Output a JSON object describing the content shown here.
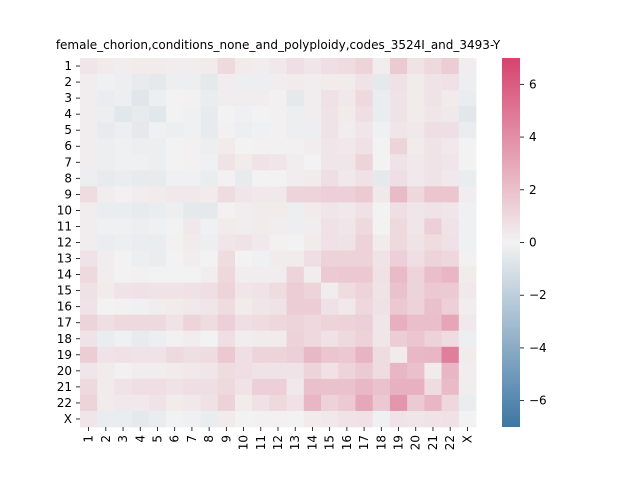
{
  "chart_data": {
    "type": "heatmap",
    "title": "female_chorion,conditions_none_and_polyploidy,codes_3524I_and_3493-Y",
    "xlabel": "",
    "ylabel": "",
    "x_categories": [
      "1",
      "2",
      "3",
      "4",
      "5",
      "6",
      "7",
      "8",
      "9",
      "10",
      "11",
      "12",
      "13",
      "14",
      "15",
      "16",
      "17",
      "18",
      "19",
      "20",
      "21",
      "22",
      "X"
    ],
    "y_categories": [
      "1",
      "2",
      "3",
      "4",
      "5",
      "6",
      "7",
      "8",
      "9",
      "10",
      "11",
      "12",
      "13",
      "14",
      "15",
      "16",
      "17",
      "18",
      "19",
      "20",
      "21",
      "22",
      "X"
    ],
    "colorbar": {
      "range": [
        -7,
        7
      ],
      "ticks": [
        -6,
        -4,
        -2,
        0,
        2,
        4,
        6
      ],
      "tick_labels": [
        "−6",
        "−4",
        "−2",
        "0",
        "2",
        "4",
        "6"
      ],
      "low_color": "#3d77a3",
      "mid_color": "#f2f2f2",
      "high_color": "#d6436e"
    },
    "values": [
      [
        0.5,
        0.3,
        0.2,
        0.3,
        0.3,
        0.2,
        0.2,
        0.3,
        1.0,
        0.3,
        0.2,
        0.4,
        0.8,
        0.5,
        0.8,
        0.9,
        1.2,
        0.2,
        1.6,
        0.6,
        1.0,
        1.5,
        0.2
      ],
      [
        0.2,
        -0.1,
        -0.2,
        -0.4,
        -0.5,
        -0.2,
        -0.2,
        -0.5,
        0.2,
        -0.2,
        -0.2,
        0.2,
        0.3,
        0.2,
        0.3,
        0.3,
        0.6,
        -0.5,
        0.7,
        0.3,
        0.6,
        0.7,
        -0.2
      ],
      [
        0.2,
        -0.3,
        -0.2,
        -0.7,
        -0.2,
        0.0,
        0.1,
        -0.3,
        0.2,
        0.2,
        0.2,
        0.1,
        -0.5,
        0.2,
        0.7,
        0.4,
        1.0,
        -0.3,
        0.6,
        0.3,
        0.6,
        0.3,
        -0.3
      ],
      [
        0.2,
        -0.2,
        -0.6,
        -0.4,
        -0.6,
        0.0,
        -0.1,
        -0.4,
        0.0,
        -0.1,
        0.0,
        0.1,
        -0.2,
        0.2,
        0.6,
        0.3,
        0.8,
        -0.3,
        0.6,
        0.3,
        0.5,
        0.4,
        -0.6
      ],
      [
        0.2,
        -0.4,
        -0.2,
        -0.5,
        -0.1,
        -0.2,
        -0.1,
        -0.4,
        0.1,
        -0.2,
        -0.1,
        0.1,
        -0.2,
        -0.2,
        0.6,
        0.2,
        0.5,
        -0.1,
        0.5,
        0.4,
        0.8,
        0.8,
        -0.3
      ],
      [
        0.2,
        -0.2,
        -0.1,
        -0.2,
        -0.2,
        0.0,
        0.1,
        -0.2,
        0.3,
        0.0,
        0.1,
        0.1,
        0.1,
        0.2,
        0.5,
        0.4,
        0.7,
        0.0,
        1.2,
        0.3,
        0.6,
        0.4,
        0.0
      ],
      [
        0.2,
        -0.2,
        -0.1,
        -0.1,
        -0.2,
        0.0,
        0.1,
        -0.1,
        0.6,
        0.3,
        0.6,
        0.5,
        0.2,
        0.0,
        0.5,
        0.5,
        1.2,
        0.0,
        0.6,
        0.4,
        0.6,
        0.5,
        0.0
      ],
      [
        -0.2,
        -0.4,
        -0.3,
        -0.4,
        -0.4,
        -0.1,
        -0.1,
        -0.3,
        0.1,
        -0.4,
        0.0,
        0.0,
        0.2,
        0.3,
        0.8,
        0.4,
        0.7,
        -0.5,
        0.8,
        0.4,
        0.6,
        0.4,
        -0.3
      ],
      [
        0.9,
        0.2,
        0.1,
        0.2,
        0.3,
        0.4,
        0.4,
        0.3,
        0.9,
        0.5,
        0.4,
        0.4,
        1.2,
        1.2,
        1.4,
        1.4,
        1.6,
        0.4,
        2.2,
        1.1,
        1.8,
        1.8,
        0.2
      ],
      [
        0.2,
        -0.3,
        -0.3,
        -0.4,
        -0.3,
        -0.2,
        -0.5,
        -0.5,
        0.1,
        0.2,
        0.3,
        0.3,
        -0.2,
        0.3,
        0.5,
        0.4,
        0.7,
        0.0,
        0.8,
        0.5,
        0.6,
        0.5,
        -0.1
      ],
      [
        0.2,
        -0.1,
        -0.1,
        -0.2,
        -0.1,
        0.0,
        0.4,
        -0.1,
        0.3,
        0.2,
        0.3,
        0.2,
        -0.2,
        0.2,
        0.7,
        0.5,
        1.0,
        0.0,
        1.0,
        0.5,
        1.4,
        0.6,
        -0.1
      ],
      [
        0.2,
        -0.3,
        -0.2,
        -0.3,
        -0.3,
        0.1,
        0.3,
        -0.2,
        0.5,
        0.6,
        0.4,
        0.1,
        0.0,
        0.3,
        0.7,
        0.6,
        1.3,
        0.3,
        1.0,
        0.6,
        0.9,
        0.7,
        -0.1
      ],
      [
        0.6,
        0.2,
        0.0,
        -0.2,
        -0.3,
        0.0,
        0.2,
        0.0,
        0.9,
        0.0,
        -0.1,
        0.3,
        0.3,
        0.8,
        1.3,
        1.3,
        1.3,
        0.6,
        1.4,
        0.8,
        1.2,
        1.1,
        0.1
      ],
      [
        1.0,
        0.2,
        0.0,
        0.1,
        0.0,
        0.0,
        0.0,
        0.2,
        1.1,
        0.2,
        0.2,
        0.2,
        1.2,
        0.2,
        1.6,
        1.7,
        1.7,
        0.7,
        2.2,
        1.2,
        2.1,
        2.4,
        0.3
      ],
      [
        0.7,
        0.3,
        0.6,
        0.7,
        0.6,
        0.6,
        0.7,
        0.8,
        1.2,
        0.5,
        0.6,
        0.9,
        1.5,
        1.2,
        0.2,
        0.9,
        1.2,
        0.6,
        1.9,
        1.2,
        1.7,
        1.6,
        0.4
      ],
      [
        0.6,
        0.0,
        0.1,
        -0.1,
        0.2,
        0.3,
        0.4,
        0.5,
        0.9,
        0.3,
        0.5,
        0.6,
        1.5,
        1.5,
        0.7,
        0.4,
        1.1,
        0.7,
        1.7,
        1.3,
        2.0,
        1.4,
        0.2
      ],
      [
        1.2,
        0.8,
        1.0,
        1.0,
        1.0,
        0.6,
        1.2,
        0.9,
        1.4,
        0.8,
        0.9,
        1.1,
        1.2,
        1.0,
        1.2,
        1.3,
        1.4,
        0.5,
        2.7,
        2.1,
        2.1,
        3.1,
        0.4
      ],
      [
        0.6,
        -0.3,
        -0.1,
        -0.4,
        -0.2,
        0.1,
        0.2,
        0.0,
        0.8,
        0.2,
        0.3,
        0.3,
        1.3,
        1.0,
        0.7,
        1.0,
        1.3,
        0.5,
        1.5,
        1.8,
        1.3,
        0.9,
        -0.2
      ],
      [
        1.5,
        0.6,
        0.7,
        0.6,
        0.6,
        1.0,
        0.8,
        0.9,
        1.7,
        0.8,
        1.2,
        1.2,
        1.4,
        2.3,
        1.8,
        1.7,
        2.5,
        0.9,
        0.3,
        2.3,
        2.4,
        4.6,
        0.3
      ],
      [
        0.5,
        0.3,
        0.1,
        0.2,
        0.2,
        0.3,
        0.4,
        0.5,
        0.9,
        0.8,
        0.6,
        0.6,
        0.6,
        1.2,
        0.7,
        1.2,
        1.6,
        0.9,
        2.4,
        2.0,
        0.3,
        2.4,
        0.2
      ],
      [
        1.0,
        0.3,
        0.6,
        0.8,
        0.8,
        0.6,
        0.8,
        0.8,
        1.0,
        0.6,
        1.4,
        1.4,
        0.4,
        2.0,
        1.9,
        1.9,
        2.3,
        1.9,
        2.6,
        2.6,
        0.9,
        2.2,
        0.2
      ],
      [
        1.2,
        0.3,
        0.4,
        0.4,
        0.6,
        0.3,
        0.4,
        0.7,
        1.3,
        0.3,
        0.7,
        1.0,
        0.7,
        2.4,
        1.3,
        1.6,
        3.0,
        1.7,
        3.7,
        1.6,
        2.4,
        1.1,
        -0.3
      ],
      [
        0.5,
        -0.3,
        -0.3,
        -0.5,
        -0.3,
        0.0,
        -0.1,
        -0.3,
        0.3,
        0.0,
        0.1,
        0.1,
        0.0,
        0.3,
        0.4,
        0.6,
        0.7,
        -0.1,
        0.6,
        0.5,
        0.6,
        0.7,
        0.0
      ]
    ]
  }
}
